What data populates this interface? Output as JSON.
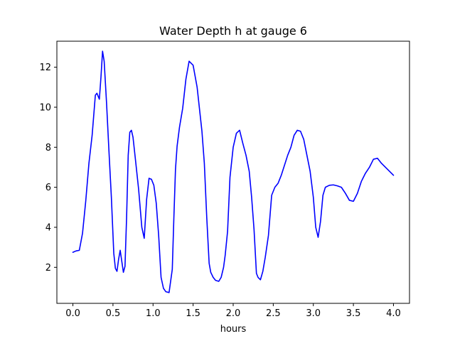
{
  "chart_data": {
    "type": "line",
    "title": "Water Depth h at gauge 6",
    "xlabel": "hours",
    "ylabel": "",
    "xlim": [
      -0.2,
      4.2
    ],
    "ylim": [
      0.2,
      13.3
    ],
    "xticks": [
      0.0,
      0.5,
      1.0,
      1.5,
      2.0,
      2.5,
      3.0,
      3.5,
      4.0
    ],
    "xtick_labels": [
      "0.0",
      "0.5",
      "1.0",
      "1.5",
      "2.0",
      "2.5",
      "3.0",
      "3.5",
      "4.0"
    ],
    "yticks": [
      2,
      4,
      6,
      8,
      10,
      12
    ],
    "ytick_labels": [
      "2",
      "4",
      "6",
      "8",
      "10",
      "12"
    ],
    "grid": false,
    "series": [
      {
        "color": "#0000ff",
        "x": [
          0.0,
          0.04,
          0.08,
          0.12,
          0.16,
          0.2,
          0.24,
          0.28,
          0.3,
          0.33,
          0.35,
          0.37,
          0.39,
          0.42,
          0.45,
          0.48,
          0.51,
          0.53,
          0.55,
          0.57,
          0.59,
          0.61,
          0.63,
          0.65,
          0.67,
          0.69,
          0.71,
          0.73,
          0.75,
          0.78,
          0.82,
          0.86,
          0.89,
          0.92,
          0.95,
          0.98,
          1.01,
          1.04,
          1.07,
          1.1,
          1.13,
          1.16,
          1.2,
          1.24,
          1.26,
          1.28,
          1.3,
          1.33,
          1.37,
          1.41,
          1.45,
          1.5,
          1.55,
          1.58,
          1.61,
          1.64,
          1.67,
          1.7,
          1.72,
          1.75,
          1.78,
          1.82,
          1.85,
          1.88,
          1.9,
          1.93,
          1.96,
          2.0,
          2.04,
          2.08,
          2.12,
          2.16,
          2.2,
          2.23,
          2.26,
          2.29,
          2.31,
          2.34,
          2.37,
          2.4,
          2.44,
          2.48,
          2.52,
          2.56,
          2.6,
          2.64,
          2.68,
          2.72,
          2.76,
          2.8,
          2.84,
          2.88,
          2.92,
          2.96,
          3.0,
          3.03,
          3.06,
          3.09,
          3.12,
          3.15,
          3.2,
          3.25,
          3.3,
          3.35,
          3.4,
          3.45,
          3.5,
          3.55,
          3.6,
          3.65,
          3.7,
          3.75,
          3.8,
          3.85,
          3.9,
          3.95,
          4.0
        ],
        "y": [
          2.75,
          2.82,
          2.85,
          3.7,
          5.3,
          7.2,
          8.6,
          10.6,
          10.7,
          10.4,
          11.5,
          12.8,
          12.3,
          10.2,
          7.8,
          5.5,
          2.7,
          1.95,
          1.8,
          2.4,
          2.85,
          2.3,
          1.75,
          2.05,
          4.5,
          7.6,
          8.75,
          8.85,
          8.5,
          7.4,
          5.9,
          4.0,
          3.45,
          5.4,
          6.45,
          6.4,
          6.1,
          5.2,
          3.6,
          1.5,
          0.95,
          0.78,
          0.74,
          1.9,
          4.5,
          6.9,
          8.05,
          9.0,
          9.95,
          11.4,
          12.3,
          12.1,
          11.0,
          9.9,
          8.8,
          7.2,
          4.5,
          2.2,
          1.75,
          1.5,
          1.35,
          1.3,
          1.5,
          2.0,
          2.6,
          3.8,
          6.5,
          8.0,
          8.7,
          8.85,
          8.2,
          7.6,
          6.8,
          5.5,
          3.9,
          1.7,
          1.5,
          1.38,
          1.8,
          2.5,
          3.6,
          5.6,
          6.0,
          6.2,
          6.6,
          7.1,
          7.6,
          8.0,
          8.6,
          8.85,
          8.8,
          8.4,
          7.6,
          6.8,
          5.5,
          4.0,
          3.5,
          4.3,
          5.6,
          6.0,
          6.1,
          6.12,
          6.07,
          6.0,
          5.7,
          5.35,
          5.3,
          5.7,
          6.3,
          6.7,
          7.0,
          7.4,
          7.45,
          7.2,
          7.0,
          6.8,
          6.6
        ]
      }
    ]
  }
}
